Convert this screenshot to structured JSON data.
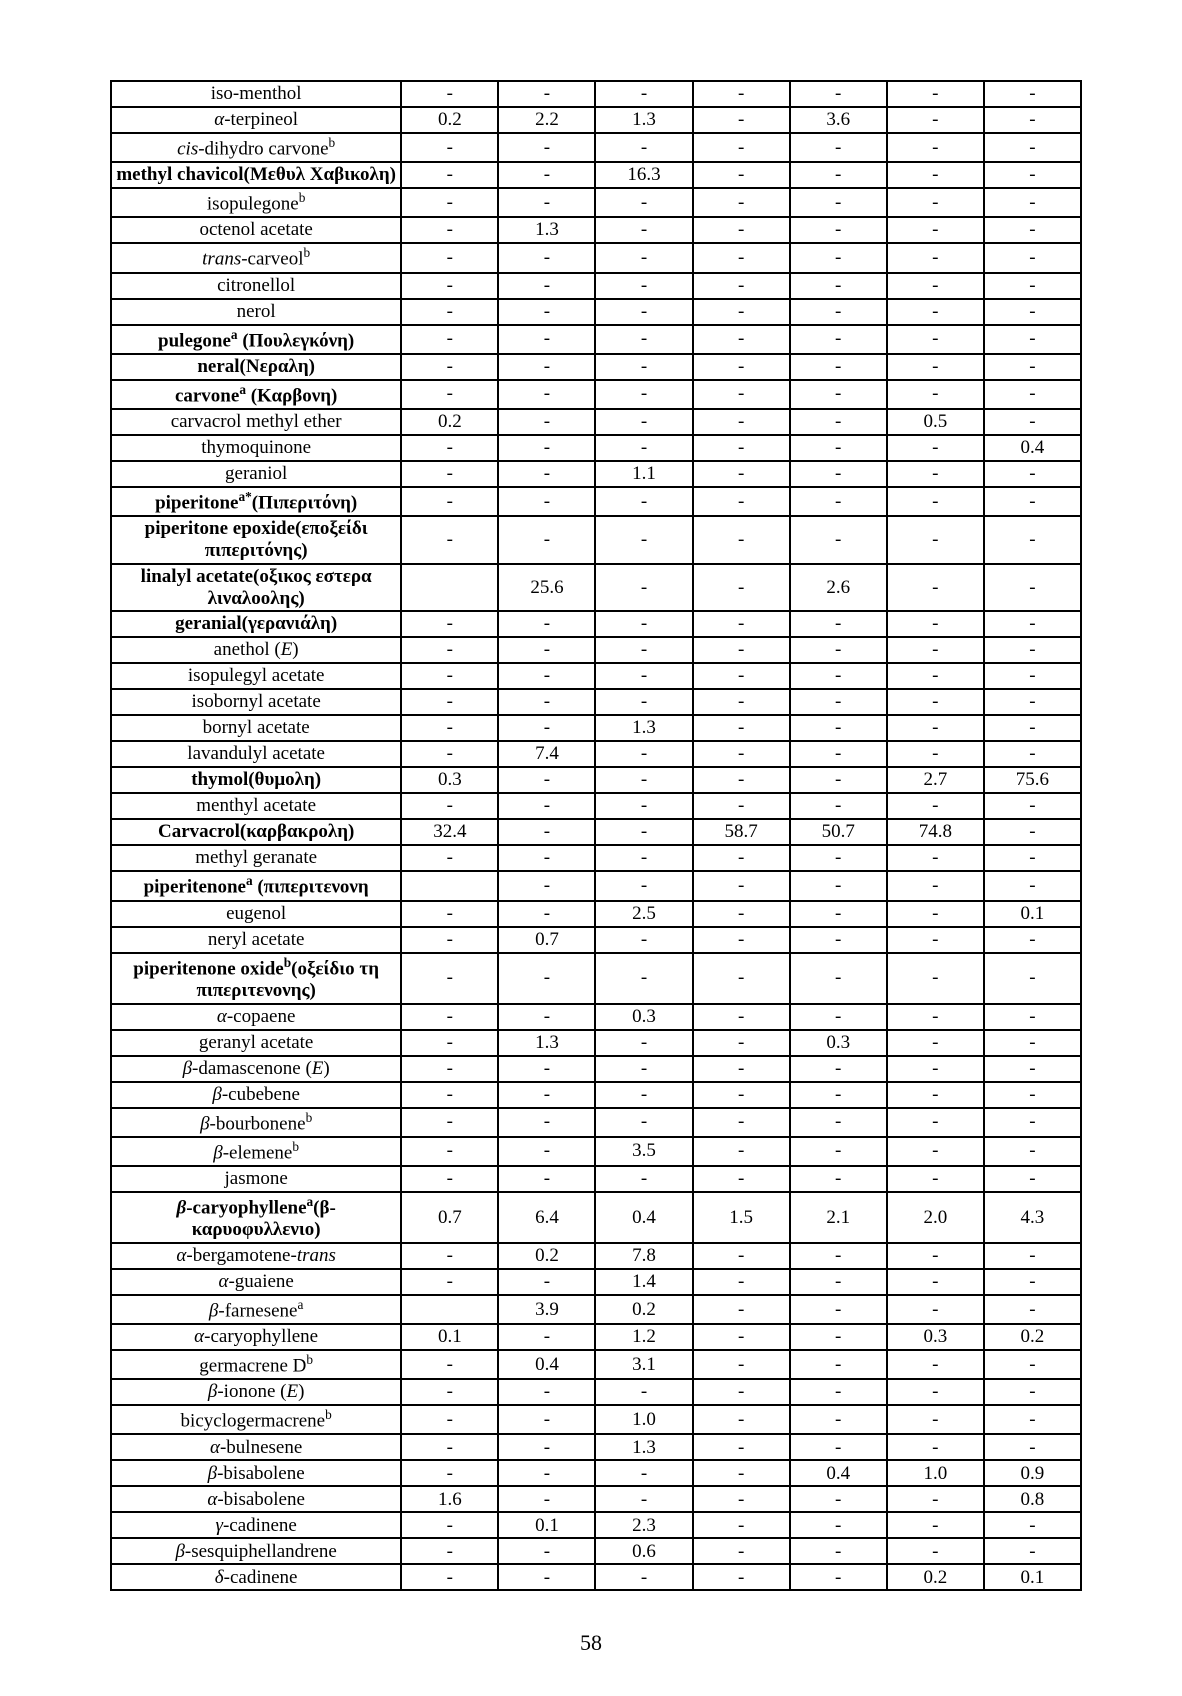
{
  "page_number": "58",
  "columns": [
    "name",
    "c1",
    "c2",
    "c3",
    "c4",
    "c5",
    "c6",
    "c7"
  ],
  "rows": [
    {
      "name_html": "iso-menthol",
      "bold": false,
      "c1": "-",
      "c2": "-",
      "c3": "-",
      "c4": "-",
      "c5": "-",
      "c6": "-",
      "c7": "-"
    },
    {
      "name_html": "<i>α</i>-terpineol",
      "bold": false,
      "c1": "0.2",
      "c2": "2.2",
      "c3": "1.3",
      "c4": "-",
      "c5": "3.6",
      "c6": "-",
      "c7": "-"
    },
    {
      "name_html": "<i>cis</i>-dihydro carvone<sup>b</sup>",
      "bold": false,
      "c1": "-",
      "c2": "-",
      "c3": "-",
      "c4": "-",
      "c5": "-",
      "c6": "-",
      "c7": "-"
    },
    {
      "name_html": "methyl chavicol(Μεθυλ Χαβικολη)",
      "bold": true,
      "c1": "-",
      "c2": "-",
      "c3": "16.3",
      "c4": "-",
      "c5": "-",
      "c6": "-",
      "c7": "-"
    },
    {
      "name_html": "isopulegone<sup>b</sup>",
      "bold": false,
      "c1": "-",
      "c2": "-",
      "c3": "-",
      "c4": "-",
      "c5": "-",
      "c6": "-",
      "c7": "-"
    },
    {
      "name_html": "octenol acetate",
      "bold": false,
      "c1": "-",
      "c2": "1.3",
      "c3": "-",
      "c4": "-",
      "c5": "-",
      "c6": "-",
      "c7": "-"
    },
    {
      "name_html": "<i>trans</i>-carveol<sup>b</sup>",
      "bold": false,
      "c1": "-",
      "c2": "-",
      "c3": "-",
      "c4": "-",
      "c5": "-",
      "c6": "-",
      "c7": "-"
    },
    {
      "name_html": "citronellol",
      "bold": false,
      "c1": "-",
      "c2": "-",
      "c3": "-",
      "c4": "-",
      "c5": "-",
      "c6": "-",
      "c7": "-"
    },
    {
      "name_html": "nerol",
      "bold": false,
      "c1": "-",
      "c2": "-",
      "c3": "-",
      "c4": "-",
      "c5": "-",
      "c6": "-",
      "c7": "-"
    },
    {
      "name_html": "pulegone<sup>a</sup> (Πουλεγκόνη)",
      "bold": true,
      "c1": "-",
      "c2": "-",
      "c3": "-",
      "c4": "-",
      "c5": "-",
      "c6": "-",
      "c7": "-"
    },
    {
      "name_html": "neral(Νεραλη)",
      "bold": true,
      "c1": "-",
      "c2": "-",
      "c3": "-",
      "c4": "-",
      "c5": "-",
      "c6": "-",
      "c7": "-"
    },
    {
      "name_html": "carvone<sup>a</sup> (Καρβονη)",
      "bold": true,
      "c1": "-",
      "c2": "-",
      "c3": "-",
      "c4": "-",
      "c5": "-",
      "c6": "-",
      "c7": "-"
    },
    {
      "name_html": "carvacrol methyl ether",
      "bold": false,
      "c1": "0.2",
      "c2": "-",
      "c3": "-",
      "c4": "-",
      "c5": "-",
      "c6": "0.5",
      "c7": "-"
    },
    {
      "name_html": "thymoquinone",
      "bold": false,
      "c1": "-",
      "c2": "-",
      "c3": "-",
      "c4": "-",
      "c5": "-",
      "c6": "-",
      "c7": "0.4"
    },
    {
      "name_html": "geraniol",
      "bold": false,
      "c1": "-",
      "c2": "-",
      "c3": "1.1",
      "c4": "-",
      "c5": "-",
      "c6": "-",
      "c7": "-"
    },
    {
      "name_html": "piperitone<sup>a*</sup>(Πιπεριτόνη)",
      "bold": true,
      "c1": "-",
      "c2": "-",
      "c3": "-",
      "c4": "-",
      "c5": "-",
      "c6": "-",
      "c7": "-"
    },
    {
      "name_html": "piperitone epoxide(εποξείδι πιπεριτόνης)",
      "bold": true,
      "c1": "-",
      "c2": "-",
      "c3": "-",
      "c4": "-",
      "c5": "-",
      "c6": "-",
      "c7": "-"
    },
    {
      "name_html": "linalyl acetate(οξικος εστερα λιναλοολης)",
      "bold": true,
      "c1": "",
      "c2": "25.6",
      "c3": "-",
      "c4": "-",
      "c5": "2.6",
      "c6": "-",
      "c7": "-"
    },
    {
      "name_html": "geranial(γερανιάλη)",
      "bold": true,
      "c1": "-",
      "c2": "-",
      "c3": "-",
      "c4": "-",
      "c5": "-",
      "c6": "-",
      "c7": "-"
    },
    {
      "name_html": "anethol (<i>E</i>)",
      "bold": false,
      "c1": "-",
      "c2": "-",
      "c3": "-",
      "c4": "-",
      "c5": "-",
      "c6": "-",
      "c7": "-"
    },
    {
      "name_html": "isopulegyl acetate",
      "bold": false,
      "c1": "-",
      "c2": "-",
      "c3": "-",
      "c4": "-",
      "c5": "-",
      "c6": "-",
      "c7": "-"
    },
    {
      "name_html": "isobornyl acetate",
      "bold": false,
      "c1": "-",
      "c2": "-",
      "c3": "-",
      "c4": "-",
      "c5": "-",
      "c6": "-",
      "c7": "-"
    },
    {
      "name_html": "bornyl acetate",
      "bold": false,
      "c1": "-",
      "c2": "-",
      "c3": "1.3",
      "c4": "-",
      "c5": "-",
      "c6": "-",
      "c7": "-"
    },
    {
      "name_html": "lavandulyl acetate",
      "bold": false,
      "c1": "-",
      "c2": "7.4",
      "c3": "-",
      "c4": "-",
      "c5": "-",
      "c6": "-",
      "c7": "-"
    },
    {
      "name_html": "thymol(θυμολη)",
      "bold": true,
      "c1": "0.3",
      "c2": "-",
      "c3": "-",
      "c4": "-",
      "c5": "-",
      "c6": "2.7",
      "c7": "75.6"
    },
    {
      "name_html": "menthyl acetate",
      "bold": false,
      "c1": "-",
      "c2": "-",
      "c3": "-",
      "c4": "-",
      "c5": "-",
      "c6": "-",
      "c7": "-"
    },
    {
      "name_html": "Carvacrol(καρβακρολη)",
      "bold": true,
      "c1": "32.4",
      "c2": "-",
      "c3": "-",
      "c4": "58.7",
      "c5": "50.7",
      "c6": "74.8",
      "c7": "-"
    },
    {
      "name_html": "methyl geranate",
      "bold": false,
      "c1": "-",
      "c2": "-",
      "c3": "-",
      "c4": "-",
      "c5": "-",
      "c6": "-",
      "c7": "-"
    },
    {
      "name_html": "piperitenone<sup>a</sup> (πιπεριτενονη",
      "bold": true,
      "c1": "",
      "c2": "-",
      "c3": "-",
      "c4": "-",
      "c5": "-",
      "c6": "-",
      "c7": "-"
    },
    {
      "name_html": "eugenol",
      "bold": false,
      "c1": "-",
      "c2": "-",
      "c3": "2.5",
      "c4": "-",
      "c5": "-",
      "c6": "-",
      "c7": "0.1"
    },
    {
      "name_html": "neryl acetate",
      "bold": false,
      "c1": "-",
      "c2": "0.7",
      "c3": "-",
      "c4": "-",
      "c5": "-",
      "c6": "-",
      "c7": "-"
    },
    {
      "name_html": "piperitenone oxide<sup>b</sup>(οξείδιο τη πιπεριτενονης)",
      "bold": true,
      "c1": "-",
      "c2": "-",
      "c3": "-",
      "c4": "-",
      "c5": "-",
      "c6": "-",
      "c7": "-"
    },
    {
      "name_html": "<i>α</i>-copaene",
      "bold": false,
      "c1": "-",
      "c2": "-",
      "c3": "0.3",
      "c4": "-",
      "c5": "-",
      "c6": "-",
      "c7": "-"
    },
    {
      "name_html": "geranyl acetate",
      "bold": false,
      "c1": "-",
      "c2": "1.3",
      "c3": "-",
      "c4": "-",
      "c5": "0.3",
      "c6": "-",
      "c7": "-"
    },
    {
      "name_html": "<i>β</i>-damascenone (<i>E</i>)",
      "bold": false,
      "c1": "-",
      "c2": "-",
      "c3": "-",
      "c4": "-",
      "c5": "-",
      "c6": "-",
      "c7": "-"
    },
    {
      "name_html": "<i>β</i>-cubebene",
      "bold": false,
      "c1": "-",
      "c2": "-",
      "c3": "-",
      "c4": "-",
      "c5": "-",
      "c6": "-",
      "c7": "-"
    },
    {
      "name_html": "<i>β</i>-bourbonene<sup>b</sup>",
      "bold": false,
      "c1": "-",
      "c2": "-",
      "c3": "-",
      "c4": "-",
      "c5": "-",
      "c6": "-",
      "c7": "-"
    },
    {
      "name_html": "<i>β</i>-elemene<sup>b</sup>",
      "bold": false,
      "c1": "-",
      "c2": "-",
      "c3": "3.5",
      "c4": "-",
      "c5": "-",
      "c6": "-",
      "c7": "-"
    },
    {
      "name_html": "jasmone",
      "bold": false,
      "c1": "-",
      "c2": "-",
      "c3": "-",
      "c4": "-",
      "c5": "-",
      "c6": "-",
      "c7": "-"
    },
    {
      "name_html": "<i>β</i>-caryophyllene<sup>a</sup>(β-καρυοφυλλενιο)",
      "bold": true,
      "c1": "0.7",
      "c2": "6.4",
      "c3": "0.4",
      "c4": "1.5",
      "c5": "2.1",
      "c6": "2.0",
      "c7": "4.3"
    },
    {
      "name_html": "<i>α</i>-bergamotene-<i>trans</i>",
      "bold": false,
      "c1": "-",
      "c2": "0.2",
      "c3": "7.8",
      "c4": "-",
      "c5": "-",
      "c6": "-",
      "c7": "-"
    },
    {
      "name_html": "<i>α</i>-guaiene",
      "bold": false,
      "c1": "-",
      "c2": "-",
      "c3": "1.4",
      "c4": "-",
      "c5": "-",
      "c6": "-",
      "c7": "-"
    },
    {
      "name_html": "<i>β</i>-farnesene<sup>a</sup>",
      "bold": false,
      "c1": "",
      "c2": "3.9",
      "c3": "0.2",
      "c4": "-",
      "c5": "-",
      "c6": "-",
      "c7": "-"
    },
    {
      "name_html": "<i>α</i>-caryophyllene",
      "bold": false,
      "c1": "0.1",
      "c2": "-",
      "c3": "1.2",
      "c4": "-",
      "c5": "-",
      "c6": "0.3",
      "c7": "0.2"
    },
    {
      "name_html": "germacrene D<sup>b</sup>",
      "bold": false,
      "c1": "-",
      "c2": "0.4",
      "c3": "3.1",
      "c4": "-",
      "c5": "-",
      "c6": "-",
      "c7": "-"
    },
    {
      "name_html": "<i>β</i>-ionone (<i>E</i>)",
      "bold": false,
      "c1": "-",
      "c2": "-",
      "c3": "-",
      "c4": "-",
      "c5": "-",
      "c6": "-",
      "c7": "-"
    },
    {
      "name_html": "bicyclogermacrene<sup>b</sup>",
      "bold": false,
      "c1": "-",
      "c2": "-",
      "c3": "1.0",
      "c4": "-",
      "c5": "-",
      "c6": "-",
      "c7": "-"
    },
    {
      "name_html": "<i>α</i>-bulnesene",
      "bold": false,
      "c1": "-",
      "c2": "-",
      "c3": "1.3",
      "c4": "-",
      "c5": "-",
      "c6": "-",
      "c7": "-"
    },
    {
      "name_html": "<i>β</i>-bisabolene",
      "bold": false,
      "c1": "-",
      "c2": "-",
      "c3": "-",
      "c4": "-",
      "c5": "0.4",
      "c6": "1.0",
      "c7": "0.9"
    },
    {
      "name_html": "<i>α</i>-bisabolene",
      "bold": false,
      "c1": "1.6",
      "c2": "-",
      "c3": "-",
      "c4": "-",
      "c5": "-",
      "c6": "-",
      "c7": "0.8"
    },
    {
      "name_html": "<i>γ</i>-cadinene",
      "bold": false,
      "c1": "-",
      "c2": "0.1",
      "c3": "2.3",
      "c4": "-",
      "c5": "-",
      "c6": "-",
      "c7": "-"
    },
    {
      "name_html": "<i>β</i>-sesquiphellandrene",
      "bold": false,
      "c1": "-",
      "c2": "-",
      "c3": "0.6",
      "c4": "-",
      "c5": "-",
      "c6": "-",
      "c7": "-"
    },
    {
      "name_html": "<i>δ</i>-cadinene",
      "bold": false,
      "c1": "-",
      "c2": "-",
      "c3": "-",
      "c4": "-",
      "c5": "-",
      "c6": "0.2",
      "c7": "0.1"
    }
  ]
}
